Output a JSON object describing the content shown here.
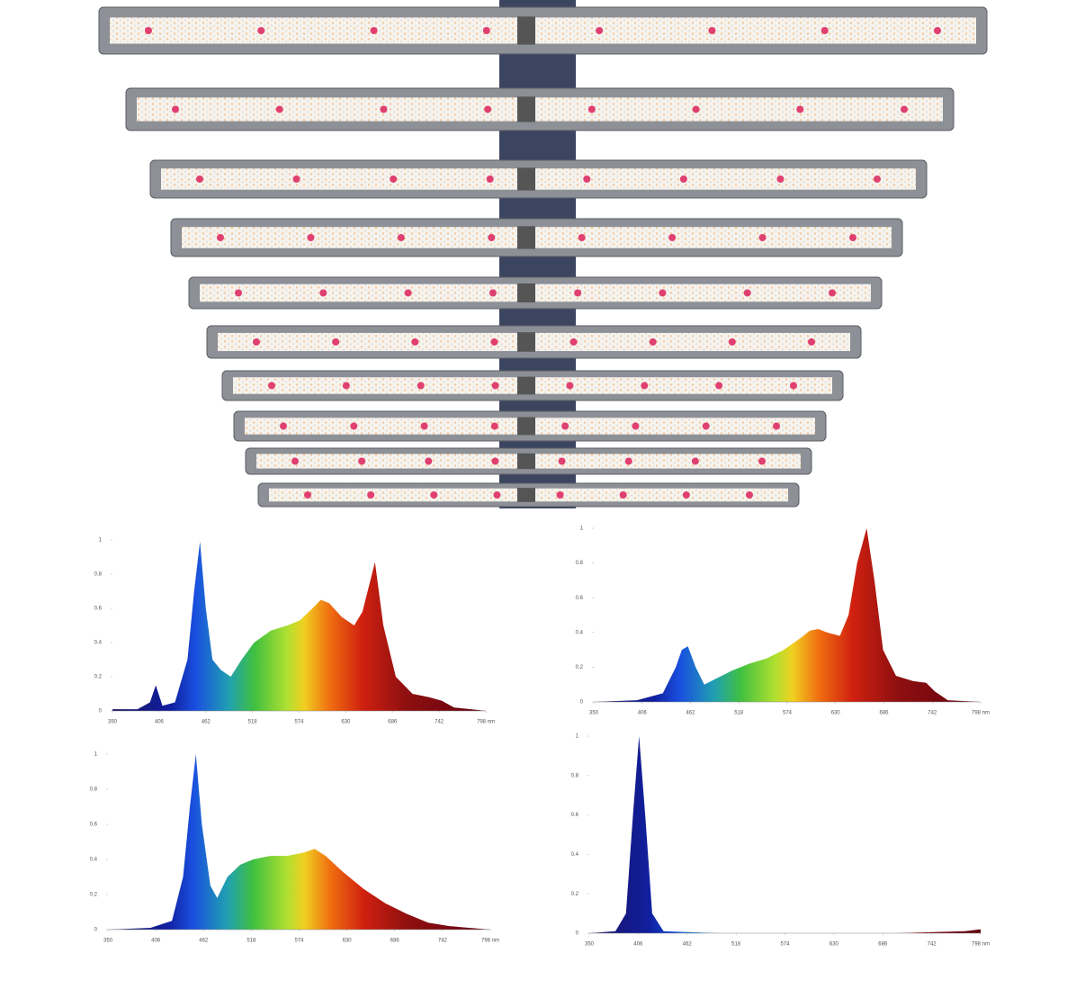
{
  "chart_data": [
    {
      "type": "area",
      "xlim": [
        350,
        798
      ],
      "ylim": [
        0,
        1
      ],
      "xticks": [
        350,
        406,
        462,
        518,
        574,
        630,
        686,
        742,
        {
          "value": 798,
          "label": "798 nm"
        }
      ],
      "yticks": [
        0,
        0.2,
        0.4,
        0.6,
        0.8,
        1
      ],
      "x": [
        350,
        380,
        395,
        402,
        410,
        425,
        440,
        448,
        455,
        462,
        470,
        480,
        492,
        505,
        520,
        540,
        560,
        575,
        590,
        600,
        610,
        625,
        640,
        650,
        665,
        675,
        690,
        710,
        730,
        745,
        760,
        780,
        798
      ],
      "values": [
        0.01,
        0.01,
        0.05,
        0.15,
        0.03,
        0.05,
        0.3,
        0.7,
        0.99,
        0.6,
        0.3,
        0.24,
        0.2,
        0.3,
        0.4,
        0.47,
        0.5,
        0.53,
        0.6,
        0.65,
        0.63,
        0.55,
        0.5,
        0.58,
        0.87,
        0.5,
        0.2,
        0.1,
        0.08,
        0.06,
        0.02,
        0.01,
        0
      ]
    },
    {
      "type": "area",
      "xlim": [
        350,
        798
      ],
      "ylim": [
        0,
        1
      ],
      "xticks": [
        350,
        406,
        462,
        518,
        574,
        630,
        686,
        742,
        {
          "value": 798,
          "label": "798 nm"
        }
      ],
      "yticks": [
        0,
        0.2,
        0.4,
        0.6,
        0.8,
        1
      ],
      "x": [
        350,
        400,
        430,
        445,
        452,
        459,
        468,
        478,
        490,
        510,
        530,
        550,
        570,
        590,
        600,
        610,
        620,
        635,
        645,
        655,
        666,
        675,
        685,
        700,
        720,
        735,
        745,
        760,
        798
      ],
      "values": [
        0,
        0.01,
        0.05,
        0.2,
        0.3,
        0.32,
        0.2,
        0.1,
        0.13,
        0.18,
        0.22,
        0.25,
        0.3,
        0.37,
        0.41,
        0.42,
        0.4,
        0.38,
        0.5,
        0.8,
        1,
        0.7,
        0.3,
        0.15,
        0.12,
        0.11,
        0.06,
        0.01,
        0
      ]
    },
    {
      "type": "area",
      "xlim": [
        350,
        798
      ],
      "ylim": [
        0,
        1
      ],
      "xticks": [
        350,
        406,
        462,
        518,
        574,
        630,
        686,
        742,
        {
          "value": 798,
          "label": "798 nm"
        }
      ],
      "yticks": [
        0,
        0.2,
        0.4,
        0.6,
        0.8,
        1
      ],
      "x": [
        350,
        400,
        425,
        438,
        446,
        453,
        460,
        470,
        478,
        490,
        505,
        520,
        540,
        560,
        580,
        592,
        605,
        625,
        650,
        675,
        700,
        725,
        750,
        798
      ],
      "values": [
        0,
        0.01,
        0.05,
        0.3,
        0.7,
        1,
        0.6,
        0.25,
        0.18,
        0.3,
        0.37,
        0.4,
        0.42,
        0.42,
        0.44,
        0.46,
        0.42,
        0.33,
        0.23,
        0.15,
        0.09,
        0.04,
        0.02,
        0
      ]
    },
    {
      "type": "area",
      "xlim": [
        350,
        798
      ],
      "ylim": [
        0,
        1
      ],
      "xticks": [
        350,
        406,
        462,
        518,
        574,
        630,
        686,
        742,
        {
          "value": 798,
          "label": "798 nm"
        }
      ],
      "yticks": [
        0,
        0.2,
        0.4,
        0.6,
        0.8,
        1
      ],
      "x": [
        350,
        380,
        392,
        400,
        407,
        414,
        422,
        435,
        500,
        600,
        700,
        780,
        798
      ],
      "values": [
        0,
        0.01,
        0.1,
        0.6,
        1,
        0.6,
        0.1,
        0.01,
        0,
        0,
        0,
        0.01,
        0.02
      ]
    }
  ]
}
